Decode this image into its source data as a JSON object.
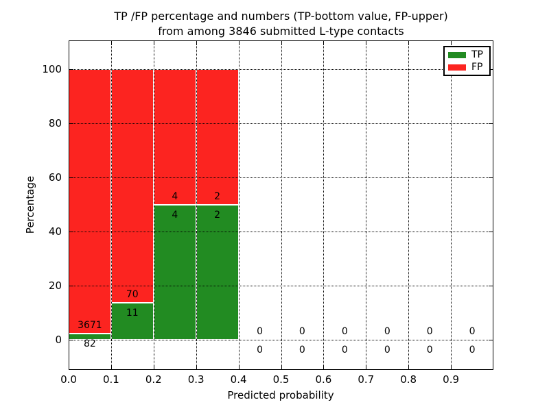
{
  "title": {
    "line1": "TP /FP percentage and numbers (TP-bottom value, FP-upper)",
    "line2": "from among 3846 submitted L-type contacts"
  },
  "colors": {
    "tp": "#228b22",
    "fp": "#fc2420",
    "background": "#ffffff",
    "axis": "#000000"
  },
  "chart_data": {
    "type": "bar",
    "stacked": true,
    "title": "TP /FP percentage and numbers (TP-bottom value, FP-upper)\nfrom among 3846 submitted L-type contacts",
    "xlabel": "Predicted probability",
    "ylabel": "Percentage",
    "xlim": [
      0.0,
      1.0
    ],
    "ylim": [
      -11,
      110.6
    ],
    "x_ticks": [
      "0.0",
      "0.1",
      "0.2",
      "0.3",
      "0.4",
      "0.5",
      "0.6",
      "0.7",
      "0.8",
      "0.9"
    ],
    "y_ticks": [
      0,
      20,
      40,
      60,
      80,
      100
    ],
    "grid": "dotted",
    "total_contacts": 3846,
    "legend": {
      "position": "upper right",
      "entries": [
        {
          "label": "TP",
          "color": "#228b22"
        },
        {
          "label": "FP",
          "color": "#fc2420"
        }
      ]
    },
    "bins": [
      {
        "range": [
          0.0,
          0.1
        ],
        "tp_count": 82,
        "fp_count": 3671,
        "tp_pct": 2.19,
        "fp_pct": 97.81
      },
      {
        "range": [
          0.1,
          0.2
        ],
        "tp_count": 11,
        "fp_count": 70,
        "tp_pct": 13.58,
        "fp_pct": 86.42
      },
      {
        "range": [
          0.2,
          0.3
        ],
        "tp_count": 4,
        "fp_count": 4,
        "tp_pct": 50,
        "fp_pct": 50
      },
      {
        "range": [
          0.3,
          0.4
        ],
        "tp_count": 2,
        "fp_count": 2,
        "tp_pct": 50,
        "fp_pct": 50
      },
      {
        "range": [
          0.4,
          0.5
        ],
        "tp_count": 0,
        "fp_count": 0,
        "tp_pct": 0,
        "fp_pct": 0
      },
      {
        "range": [
          0.5,
          0.6
        ],
        "tp_count": 0,
        "fp_count": 0,
        "tp_pct": 0,
        "fp_pct": 0
      },
      {
        "range": [
          0.6,
          0.7
        ],
        "tp_count": 0,
        "fp_count": 0,
        "tp_pct": 0,
        "fp_pct": 0
      },
      {
        "range": [
          0.7,
          0.8
        ],
        "tp_count": 0,
        "fp_count": 0,
        "tp_pct": 0,
        "fp_pct": 0
      },
      {
        "range": [
          0.8,
          0.9
        ],
        "tp_count": 0,
        "fp_count": 0,
        "tp_pct": 0,
        "fp_pct": 0
      },
      {
        "range": [
          0.9,
          1.0
        ],
        "tp_count": 0,
        "fp_count": 0,
        "tp_pct": 0,
        "fp_pct": 0
      }
    ]
  }
}
